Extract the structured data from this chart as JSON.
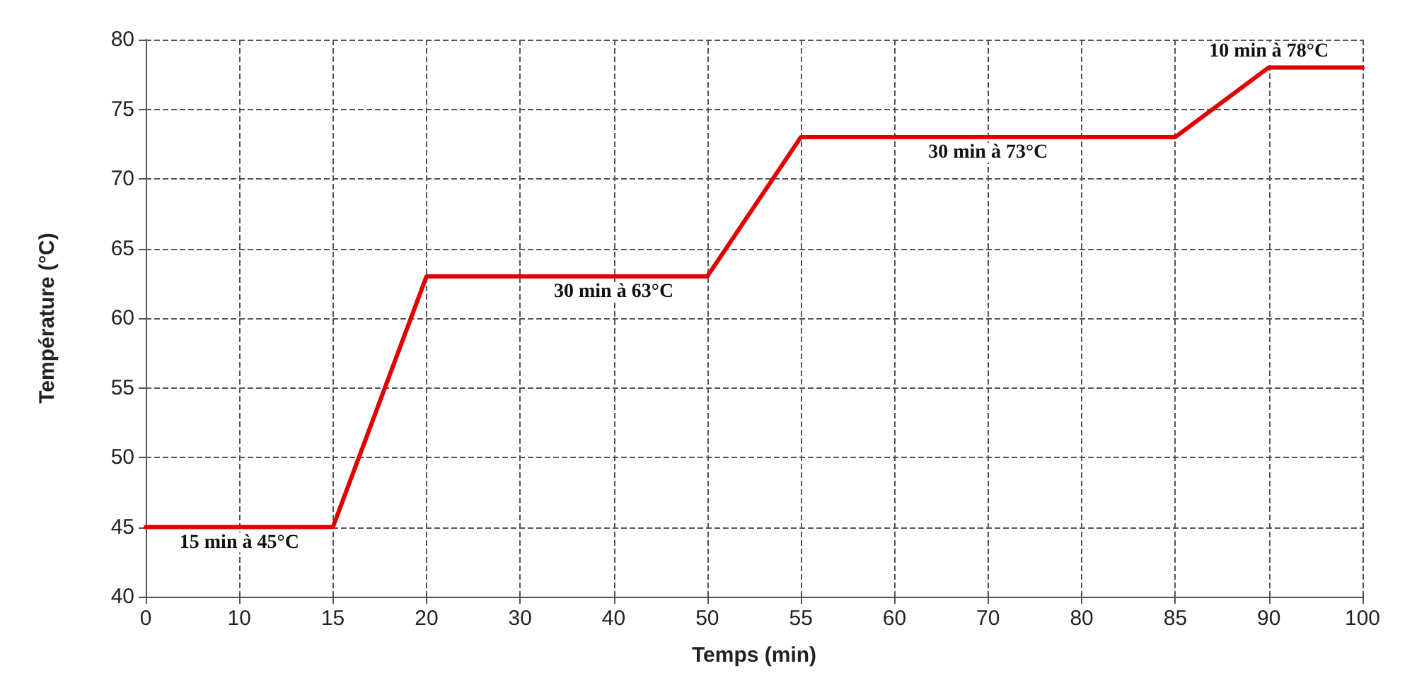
{
  "chart_data": {
    "type": "line",
    "xlabel": "Temps (min)",
    "ylabel": "Température (°C)",
    "categories": [
      "0",
      "10",
      "15",
      "20",
      "30",
      "40",
      "50",
      "55",
      "60",
      "70",
      "80",
      "85",
      "90",
      "100"
    ],
    "series": [
      {
        "color": "#e00000",
        "values": [
          45,
          45,
          45,
          63,
          63,
          63,
          63,
          73,
          73,
          73,
          73,
          73,
          78,
          78
        ]
      }
    ],
    "ylim": [
      40,
      80
    ],
    "yticks": [
      40,
      45,
      50,
      55,
      60,
      65,
      70,
      75,
      80
    ],
    "grid": true,
    "marker": "none",
    "line_style": "solid",
    "annotations": [
      {
        "text": "15 min à 45°C",
        "x": "10",
        "y": 45
      },
      {
        "text": "30 min à 63°C",
        "x": "40",
        "y": 63
      },
      {
        "text": "30 min à 73°C",
        "x": "70",
        "y": 73
      },
      {
        "text": "10 min à 78°C",
        "x": "90",
        "y": 78
      }
    ]
  }
}
